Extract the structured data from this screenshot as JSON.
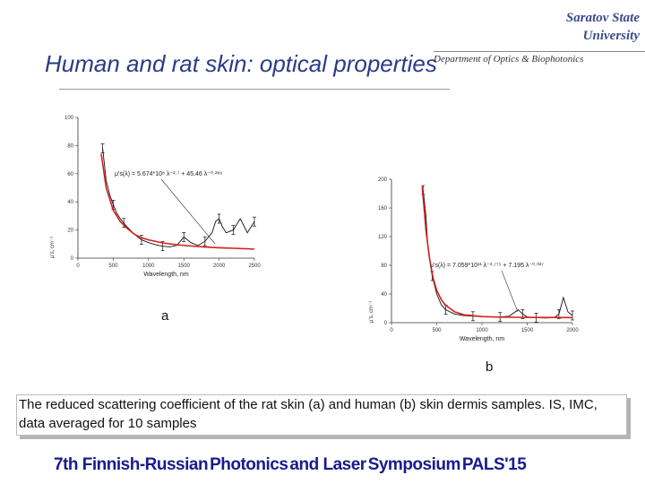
{
  "header": {
    "university_line1": "Saratov State",
    "university_line2": "University",
    "department": "Department of Optics & Biophotonics",
    "title": "Human and rat skin: optical properties"
  },
  "figure_labels": {
    "a": "a",
    "b": "b"
  },
  "caption": "The reduced scattering coefficient of the rat skin (a) and human (b) skin dermis samples. IS, IMC, data averaged for 10 samples",
  "footer": {
    "part1": "7th Finnish-Russian",
    "part2": "Photonics",
    "part3": "and Laser",
    "part4": "Symposium",
    "part5": "PALS'15"
  },
  "chart_data": [
    {
      "type": "line",
      "id": "rat_skin",
      "xlabel": "Wavelength, nm",
      "ylabel": "μ's, cm⁻¹",
      "xlim": [
        0,
        2500
      ],
      "ylim": [
        0,
        100
      ],
      "xticks": [
        "0",
        "500",
        "1000",
        "1500",
        "2000",
        "2500"
      ],
      "yticks": [
        "0",
        "20",
        "40",
        "60",
        "80",
        "100"
      ],
      "fit_label": "μ's(λ) = 5.674*10⁸ λ⁻²·⁷ + 45.46 λ⁻⁰·²⁸⁶",
      "series": [
        {
          "name": "measured",
          "color": "#111111",
          "x": [
            350,
            400,
            450,
            500,
            550,
            600,
            650,
            700,
            800,
            900,
            1000,
            1100,
            1200,
            1300,
            1400,
            1500,
            1600,
            1700,
            1800,
            1900,
            1950,
            2000,
            2050,
            2100,
            2200,
            2300,
            2400,
            2500
          ],
          "y": [
            78,
            55,
            45,
            38,
            32,
            28,
            25,
            22,
            17,
            13,
            11,
            9.5,
            8.5,
            8,
            9,
            15,
            11,
            9,
            12,
            18,
            26,
            28,
            22,
            18,
            20,
            28,
            18,
            26
          ]
        },
        {
          "name": "fit",
          "color": "#d42020",
          "x": [
            330,
            400,
            500,
            600,
            700,
            800,
            900,
            1000,
            1200,
            1400,
            1600,
            1800,
            2000,
            2200,
            2400,
            2500
          ],
          "y": [
            74,
            50,
            34,
            26,
            21,
            17,
            14.5,
            13,
            10.8,
            9.5,
            8.6,
            7.9,
            7.4,
            7,
            6.6,
            6.4
          ]
        }
      ]
    },
    {
      "type": "line",
      "id": "human_skin",
      "xlabel": "Wavelength, nm",
      "ylabel": "μ's, cm⁻¹",
      "xlim": [
        0,
        2000
      ],
      "ylim": [
        0,
        200
      ],
      "xticks": [
        "0",
        "500",
        "1000",
        "1500",
        "2000"
      ],
      "yticks": [
        "0",
        "40",
        "80",
        "120",
        "160",
        "200"
      ],
      "fit_label": "μ's(λ) = 7.059*10¹¹ λ⁻³·⁷⁷⁵ + 7.195 λ⁻⁰·⁰²⁷",
      "series": [
        {
          "name": "measured",
          "color": "#111111",
          "x": [
            350,
            380,
            400,
            450,
            500,
            550,
            600,
            700,
            800,
            900,
            1000,
            1100,
            1200,
            1300,
            1400,
            1450,
            1500,
            1550,
            1600,
            1700,
            1800,
            1850,
            1900,
            1950,
            2000
          ],
          "y": [
            185,
            150,
            110,
            65,
            40,
            25,
            18,
            12,
            10,
            9,
            8.5,
            8,
            8,
            9,
            18,
            12,
            8,
            7,
            7,
            6.5,
            7,
            12,
            35,
            15,
            10
          ]
        },
        {
          "name": "fit",
          "color": "#d42020",
          "x": [
            340,
            380,
            420,
            460,
            500,
            550,
            600,
            700,
            800,
            1000,
            1200,
            1400,
            1600,
            1800,
            2000
          ],
          "y": [
            190,
            130,
            90,
            62,
            45,
            32,
            24,
            15,
            11,
            8.5,
            7.8,
            7.5,
            7.3,
            7.2,
            7.1
          ]
        }
      ]
    }
  ]
}
